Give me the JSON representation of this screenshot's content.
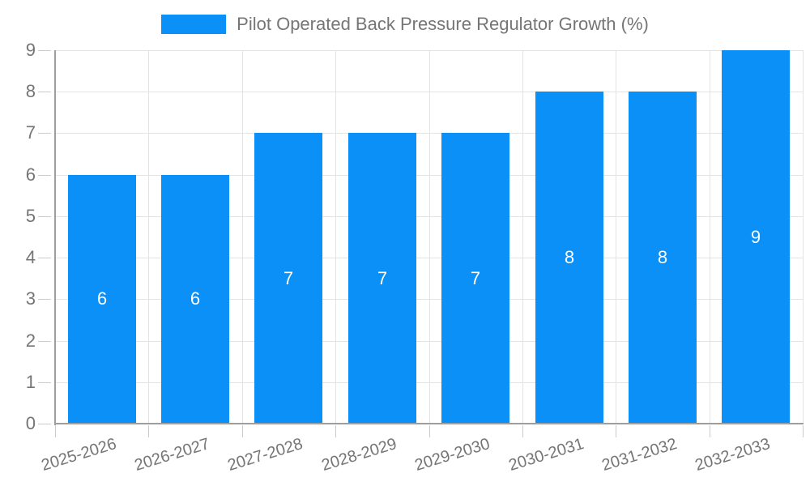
{
  "legend": {
    "position": "top"
  },
  "chart_data": {
    "type": "bar",
    "title": "Pilot Operated Back Pressure Regulator Growth (%)",
    "xlabel": "",
    "ylabel": "",
    "categories": [
      "2025-2026",
      "2026-2027",
      "2027-2028",
      "2028-2029",
      "2029-2030",
      "2030-2031",
      "2031-2032",
      "2032-2033"
    ],
    "values": [
      6,
      6,
      7,
      7,
      7,
      8,
      8,
      9
    ],
    "bar_value_labels": [
      "6",
      "6",
      "7",
      "7",
      "7",
      "8",
      "8",
      "9"
    ],
    "yticks": [
      "0",
      "1",
      "2",
      "3",
      "4",
      "5",
      "6",
      "7",
      "8",
      "9"
    ],
    "ylim": [
      0,
      9
    ],
    "grid": true,
    "legend_position": "top",
    "colors": {
      "bar": "#0A90F6",
      "bar_value_text": "#ffffff",
      "axis_text": "#757575",
      "grid_line": "#e3e3e3",
      "axis_line": "#9e9e9e",
      "tick_line": "#cccccc",
      "background": "#ffffff"
    }
  }
}
